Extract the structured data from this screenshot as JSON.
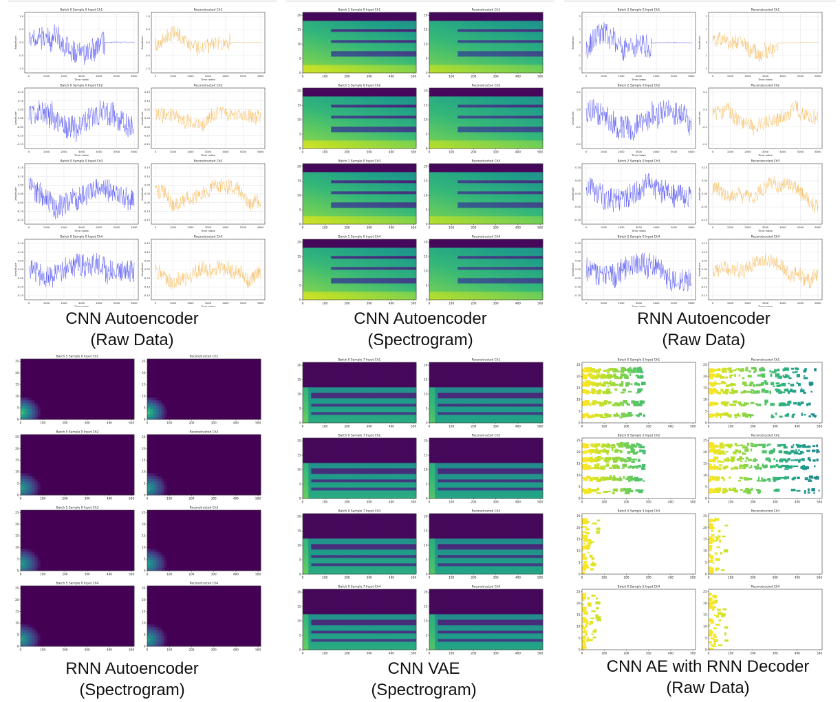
{
  "colors": {
    "input_raw": "#3b3bf0",
    "recon_raw": "#f5b041",
    "spec_dark": "#440154",
    "spec_mid": "#21918c",
    "spec_bright": "#fde725"
  },
  "chart_data": [
    {
      "type": "line",
      "caption": [
        "CNN Autoencoder",
        "(Raw Data)"
      ],
      "channels": [
        {
          "input_title": "Batch 0 Sample 0 Input Ch1",
          "recon_title": "Reconstructed Ch1",
          "ylim": [
            -1.2,
            1.2
          ],
          "yticks": [
            "1.0",
            "0.5",
            "0.0",
            "-0.5",
            "-1.0"
          ],
          "xticks": [
            "0",
            "1000",
            "2000",
            "3000",
            "4000",
            "5000",
            "6000"
          ],
          "xlabel": "Time index",
          "ylabel": "Amplitude"
        },
        {
          "input_title": "Batch 0 Sample 0 Input Ch2",
          "recon_title": "Reconstructed Ch2",
          "ylim": [
            -0.2,
            0.15
          ],
          "yticks": [
            "0.15",
            "0.10",
            "0.05",
            "0.00",
            "-0.05",
            "-0.10",
            "-0.15"
          ],
          "xticks": [
            "0",
            "1000",
            "2000",
            "3000",
            "4000",
            "5000",
            "6000"
          ],
          "xlabel": "Time index",
          "ylabel": "Amplitude"
        },
        {
          "input_title": "Batch 0 Sample 0 Input Ch3",
          "recon_title": "Reconstructed Ch3",
          "ylim": [
            -0.15,
            0.15
          ],
          "yticks": [
            "0.15",
            "0.10",
            "0.05",
            "0.00",
            "-0.05",
            "-0.10",
            "-0.15"
          ],
          "xticks": [
            "0",
            "1000",
            "2000",
            "3000",
            "4000",
            "5000",
            "6000"
          ],
          "xlabel": "Time index",
          "ylabel": "Amplitude"
        },
        {
          "input_title": "Batch 0 Sample 0 Input Ch4",
          "recon_title": "Reconstructed Ch4",
          "ylim": [
            -0.2,
            0.15
          ],
          "yticks": [
            "0.15",
            "0.10",
            "0.05",
            "0.00",
            "-0.05",
            "-0.10",
            "-0.15"
          ],
          "xticks": [
            "0",
            "1000",
            "2000",
            "3000",
            "4000",
            "5000",
            "6000"
          ],
          "xlabel": "Time index",
          "ylabel": "Amplitude"
        }
      ]
    },
    {
      "type": "heatmap",
      "caption": [
        "CNN Autoencoder",
        "(Spectrogram)"
      ],
      "xlim": [
        0,
        512
      ],
      "ylim": [
        0,
        21
      ],
      "xticks": [
        "0",
        "100",
        "200",
        "300",
        "400",
        "500"
      ],
      "yticks": [
        "0",
        "5",
        "10",
        "15",
        "20"
      ],
      "channels": [
        {
          "input_title": "Batch 1 Sample 0 Input Ch1",
          "recon_title": "Reconstructed Ch1"
        },
        {
          "input_title": "Batch 1 Sample 0 Input Ch2",
          "recon_title": "Reconstructed Ch2"
        },
        {
          "input_title": "Batch 1 Sample 0 Input Ch3",
          "recon_title": "Reconstructed Ch3"
        },
        {
          "input_title": "Batch 1 Sample 0 Input Ch4",
          "recon_title": "Reconstructed Ch4"
        }
      ]
    },
    {
      "type": "line",
      "caption": [
        "RNN Autoencoder",
        "(Raw Data)"
      ],
      "channels": [
        {
          "input_title": "Batch 2 Sample 0 Input Ch1",
          "recon_title": "Reconstructed Ch1",
          "ylim": [
            -2.2,
            2.2
          ],
          "yticks": [
            "2",
            "1",
            "0",
            "-1",
            "-2"
          ],
          "xticks": [
            "0",
            "1000",
            "2000",
            "3000",
            "4000",
            "5000",
            "6000"
          ],
          "xlabel": "Time index",
          "ylabel": "Amplitude"
        },
        {
          "input_title": "Batch 2 Sample 0 Input Ch2",
          "recon_title": "Reconstructed Ch2",
          "ylim": [
            -0.3,
            0.2
          ],
          "yticks": [
            "0.1",
            "0.0",
            "-0.1",
            "-0.2"
          ],
          "xticks": [
            "0",
            "1000",
            "2000",
            "3000",
            "4000",
            "5000",
            "6000"
          ],
          "xlabel": "Time index",
          "ylabel": "Amplitude"
        },
        {
          "input_title": "Batch 2 Sample 0 Input Ch3",
          "recon_title": "Reconstructed Ch3",
          "ylim": [
            -0.15,
            0.15
          ],
          "yticks": [
            "0.10",
            "0.05",
            "0.00",
            "-0.05",
            "-0.10"
          ],
          "xticks": [
            "0",
            "1000",
            "2000",
            "3000",
            "4000",
            "5000",
            "6000"
          ],
          "xlabel": "Time index",
          "ylabel": "Amplitude"
        },
        {
          "input_title": "Batch 2 Sample 0 Input Ch4",
          "recon_title": "Reconstructed Ch4",
          "ylim": [
            -0.2,
            0.2
          ],
          "yticks": [
            "0.15",
            "0.10",
            "0.05",
            "0.00",
            "-0.05",
            "-0.10",
            "-0.15"
          ],
          "xticks": [
            "0",
            "1000",
            "2000",
            "3000",
            "4000",
            "5000",
            "6000"
          ],
          "xlabel": "Time index",
          "ylabel": "Amplitude"
        }
      ]
    },
    {
      "type": "heatmap",
      "caption": [
        "RNN Autoencoder",
        "(Spectrogram)"
      ],
      "xlim": [
        0,
        512
      ],
      "ylim": [
        0,
        26
      ],
      "xticks": [
        "0",
        "100",
        "200",
        "300",
        "400",
        "500"
      ],
      "yticks": [
        "0",
        "5",
        "10",
        "15",
        "20",
        "25"
      ],
      "channels": [
        {
          "input_title": "Batch 5 Sample 0 Input Ch1",
          "recon_title": "Reconstructed Ch1"
        },
        {
          "input_title": "Batch 5 Sample 0 Input Ch2",
          "recon_title": "Reconstructed Ch2"
        },
        {
          "input_title": "Batch 5 Sample 0 Input Ch3",
          "recon_title": "Reconstructed Ch3"
        },
        {
          "input_title": "Batch 5 Sample 0 Input Ch4",
          "recon_title": "Reconstructed Ch4"
        }
      ]
    },
    {
      "type": "heatmap",
      "caption": [
        "CNN VAE",
        "(Spectrogram)"
      ],
      "xlim": [
        0,
        512
      ],
      "ylim": [
        0,
        21
      ],
      "xticks": [
        "0",
        "100",
        "200",
        "300",
        "400",
        "500"
      ],
      "yticks": [
        "0",
        "5",
        "10",
        "15",
        "20"
      ],
      "channels": [
        {
          "input_title": "Batch 0 Sample 7 Input Ch1",
          "recon_title": "Reconstructed Ch1"
        },
        {
          "input_title": "Batch 0 Sample 7 Input Ch2",
          "recon_title": "Reconstructed Ch2"
        },
        {
          "input_title": "Batch 0 Sample 7 Input Ch3",
          "recon_title": "Reconstructed Ch3"
        },
        {
          "input_title": "Batch 0 Sample 7 Input Ch4",
          "recon_title": "Reconstructed Ch4"
        }
      ]
    },
    {
      "type": "heatmap",
      "caption": [
        "CNN AE with RNN Decoder",
        "(Raw Data)"
      ],
      "xlim": [
        0,
        512
      ],
      "ylim": [
        0,
        26
      ],
      "xticks": [
        "0",
        "100",
        "200",
        "300",
        "400",
        "500"
      ],
      "yticks": [
        "0",
        "5",
        "10",
        "15",
        "20",
        "25"
      ],
      "channels": [
        {
          "input_title": "Batch 0 Sample 5 Input Ch1",
          "recon_title": "Reconstructed Ch1"
        },
        {
          "input_title": "Batch 0 Sample 5 Input Ch2",
          "recon_title": "Reconstructed Ch2"
        },
        {
          "input_title": "Batch 0 Sample 5 Input Ch3",
          "recon_title": "Reconstructed Ch3"
        },
        {
          "input_title": "Batch 0 Sample 5 Input Ch4",
          "recon_title": "Reconstructed Ch4"
        }
      ]
    }
  ]
}
